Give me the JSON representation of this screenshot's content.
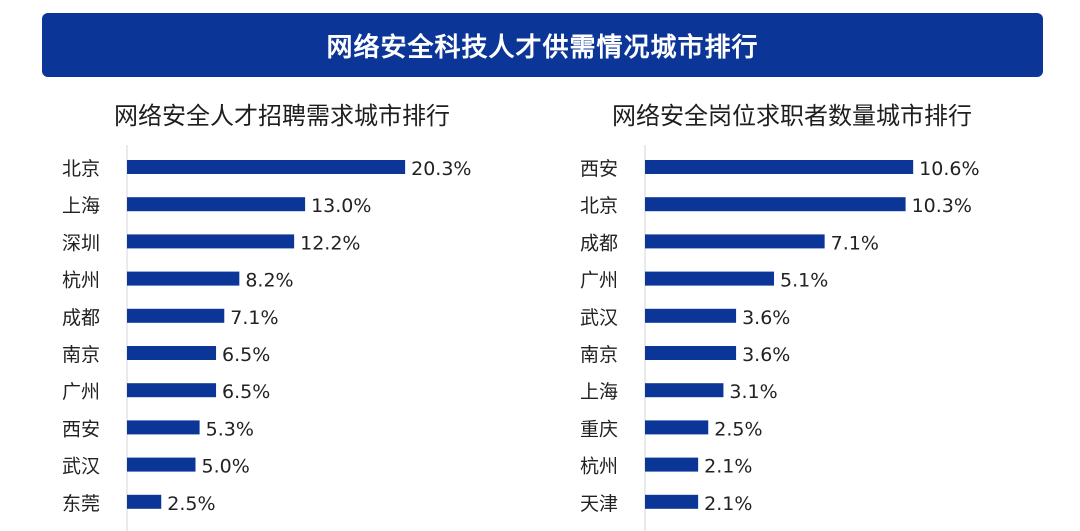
{
  "header": {
    "title": "网络安全科技人才供需情况城市排行"
  },
  "colors": {
    "bar": "#0b3596",
    "banner": "#0b3596"
  },
  "chart_data": [
    {
      "type": "bar",
      "orientation": "horizontal",
      "title": "网络安全人才招聘需求城市排行",
      "categories": [
        "北京",
        "上海",
        "深圳",
        "杭州",
        "成都",
        "南京",
        "广州",
        "西安",
        "武汉",
        "东莞"
      ],
      "values": [
        20.3,
        13.0,
        12.2,
        8.2,
        7.1,
        6.5,
        6.5,
        5.3,
        5.0,
        2.5
      ],
      "labels": [
        "20.3%",
        "13.0%",
        "12.2%",
        "8.2%",
        "7.1%",
        "6.5%",
        "6.5%",
        "5.3%",
        "5.0%",
        "2.5%"
      ],
      "unit": "%",
      "grid": false
    },
    {
      "type": "bar",
      "orientation": "horizontal",
      "title": "网络安全岗位求职者数量城市排行",
      "categories": [
        "西安",
        "北京",
        "成都",
        "广州",
        "武汉",
        "南京",
        "上海",
        "重庆",
        "杭州",
        "天津"
      ],
      "values": [
        10.6,
        10.3,
        7.1,
        5.1,
        3.6,
        3.6,
        3.1,
        2.5,
        2.1,
        2.1
      ],
      "labels": [
        "10.6%",
        "10.3%",
        "7.1%",
        "5.1%",
        "3.6%",
        "3.6%",
        "3.1%",
        "2.5%",
        "2.1%",
        "2.1%"
      ],
      "unit": "%",
      "grid": false
    }
  ]
}
